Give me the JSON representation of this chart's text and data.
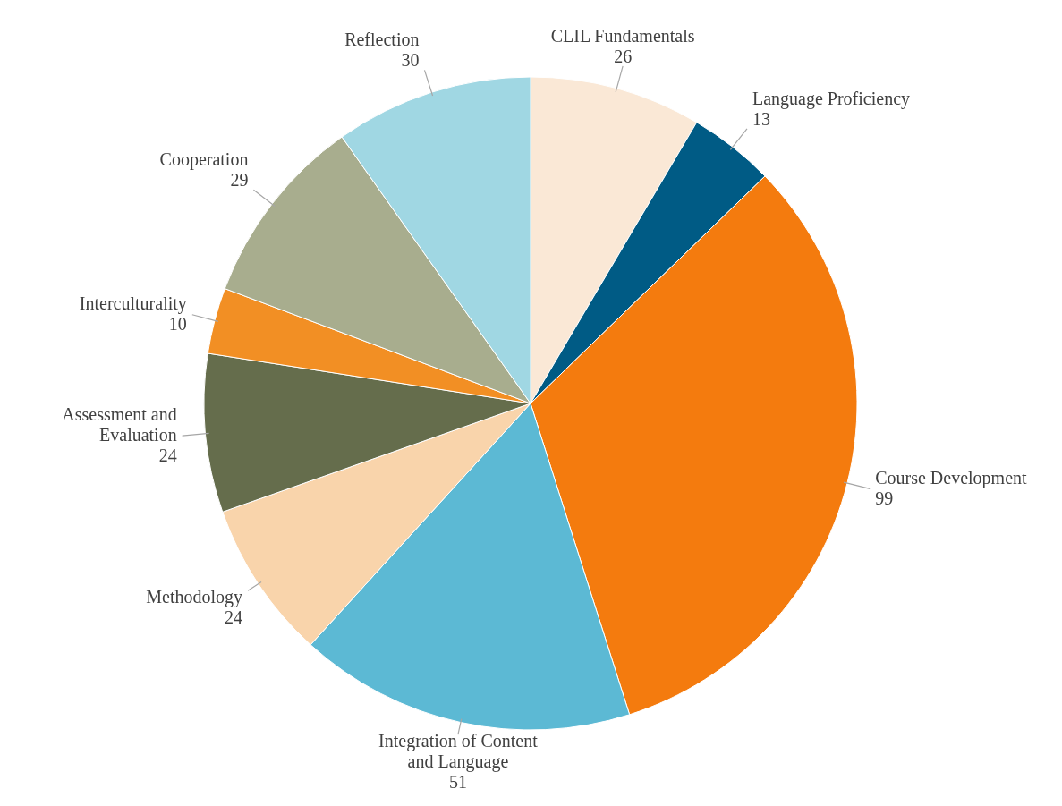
{
  "chart_data": {
    "type": "pie",
    "categories": [
      "CLIL Fundamentals",
      "Language Proficiency",
      "Course Development",
      "Integration of Content and Language",
      "Methodology",
      "Assessment and Evaluation",
      "Interculturality",
      "Cooperation",
      "Reflection"
    ],
    "values": [
      26,
      13,
      99,
      51,
      24,
      24,
      10,
      29,
      30
    ],
    "colors": [
      "#fae8d6",
      "#005b85",
      "#f47b0e",
      "#5cb9d4",
      "#f9d4ab",
      "#656d4c",
      "#f28f24",
      "#a8ad8e",
      "#a0d7e3"
    ],
    "data_labels": true
  }
}
